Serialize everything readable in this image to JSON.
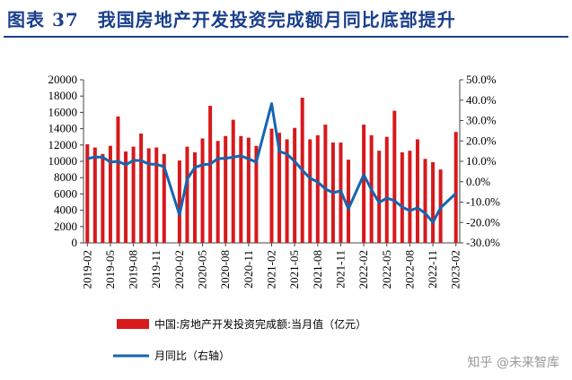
{
  "title": "图表 37　我国房地产开发投资完成额月同比底部提升",
  "watermark": "知乎 @未来智库",
  "colors": {
    "bar": "#d7191c",
    "line": "#1565b0",
    "title": "#1a3f8c"
  },
  "chart_data": {
    "type": "bar+line",
    "title": "图表 37 我国房地产开发投资完成额月同比底部提升",
    "months": [
      "2019-02",
      "2019-03",
      "2019-04",
      "2019-05",
      "2019-06",
      "2019-07",
      "2019-08",
      "2019-09",
      "2019-10",
      "2019-11",
      "2019-12",
      "2020-01",
      "2020-02",
      "2020-03",
      "2020-04",
      "2020-05",
      "2020-06",
      "2020-07",
      "2020-08",
      "2020-09",
      "2020-10",
      "2020-11",
      "2020-12",
      "2021-01",
      "2021-02",
      "2021-03",
      "2021-04",
      "2021-05",
      "2021-06",
      "2021-07",
      "2021-08",
      "2021-09",
      "2021-10",
      "2021-11",
      "2021-12",
      "2022-01",
      "2022-02",
      "2022-03",
      "2022-04",
      "2022-05",
      "2022-06",
      "2022-07",
      "2022-08",
      "2022-09",
      "2022-10",
      "2022-11",
      "2022-12",
      "2023-01",
      "2023-02"
    ],
    "xtick_labels": [
      "2019-02",
      "2019-05",
      "2019-08",
      "2019-11",
      "2020-02",
      "2020-05",
      "2020-08",
      "2020-11",
      "2021-02",
      "2021-05",
      "2021-08",
      "2021-11",
      "2022-02",
      "2022-05",
      "2022-08",
      "2022-11",
      "2023-02"
    ],
    "series": [
      {
        "name": "中国:房地产开发投资完成额:当月值（亿元）",
        "type": "bar",
        "axis": "left",
        "values": [
          12100,
          11700,
          10900,
          11900,
          15500,
          11200,
          11800,
          13400,
          11600,
          11700,
          10900,
          null,
          10100,
          11800,
          11100,
          12800,
          16800,
          12500,
          13100,
          15100,
          13100,
          12900,
          11900,
          null,
          14000,
          13500,
          12700,
          14100,
          17800,
          12700,
          13200,
          14500,
          12300,
          12300,
          10200,
          null,
          14500,
          13200,
          11300,
          13000,
          16200,
          11100,
          11300,
          12700,
          10300,
          9900,
          9000,
          null,
          13600
        ]
      },
      {
        "name": "月同比（右轴）",
        "type": "line",
        "axis": "right",
        "values": [
          11.3,
          12.1,
          12.0,
          9.6,
          10.0,
          8.3,
          10.5,
          10.4,
          8.7,
          8.5,
          7.4,
          null,
          -16.3,
          1.2,
          7.0,
          8.3,
          8.7,
          11.3,
          11.5,
          12.0,
          12.7,
          11.2,
          9.6,
          null,
          38.3,
          14.9,
          13.5,
          10.0,
          5.6,
          1.7,
          -0.1,
          -3.6,
          -5.4,
          -4.5,
          -13.3,
          null,
          3.4,
          -4.0,
          -10.2,
          -8.0,
          -9.3,
          -12.4,
          -14.2,
          -12.8,
          -15.5,
          -19.9,
          -12.8,
          null,
          -5.7
        ]
      }
    ],
    "yleft": {
      "min": 0,
      "max": 20000,
      "ticks": [
        "0",
        "2000",
        "4000",
        "6000",
        "8000",
        "10000",
        "12000",
        "14000",
        "16000",
        "18000",
        "20000"
      ]
    },
    "yright": {
      "min": -30,
      "max": 50,
      "ticks": [
        "-30.0%",
        "-20.0%",
        "-10.0%",
        "0.0%",
        "10.0%",
        "20.0%",
        "30.0%",
        "40.0%",
        "50.0%"
      ]
    },
    "legend": {
      "placement": "bottom",
      "bar_label": "中国:房地产开发投资完成额:当月值（亿元）",
      "line_label": "月同比（右轴）"
    }
  }
}
